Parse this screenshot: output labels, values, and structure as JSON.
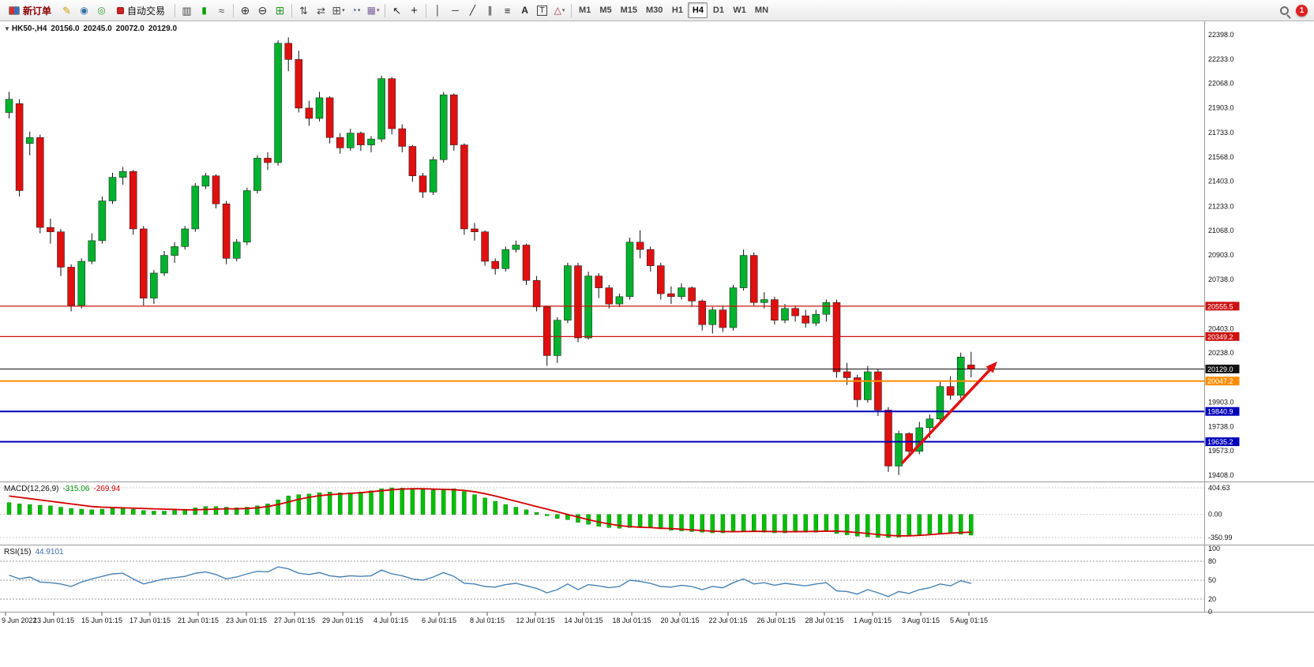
{
  "toolbar": {
    "items": [
      {
        "type": "button",
        "name": "new-order",
        "label": "新订单"
      },
      {
        "type": "icon",
        "name": "crayon"
      },
      {
        "type": "icon",
        "name": "profile"
      },
      {
        "type": "icon",
        "name": "community"
      },
      {
        "type": "button",
        "name": "autotrade",
        "label": "自动交易"
      },
      {
        "type": "sep"
      },
      {
        "type": "icon",
        "name": "bar-chart"
      },
      {
        "type": "icon",
        "name": "candlestick-chart"
      },
      {
        "type": "icon",
        "name": "line-chart"
      },
      {
        "type": "sep"
      },
      {
        "type": "icon",
        "name": "zoom-in"
      },
      {
        "type": "icon",
        "name": "zoom-out"
      },
      {
        "type": "icon",
        "name": "tile-windows"
      },
      {
        "type": "sep"
      },
      {
        "type": "icon",
        "name": "arrange-up"
      },
      {
        "type": "icon",
        "name": "arrange-down"
      },
      {
        "type": "icon",
        "name": "new-chart",
        "caret": true
      },
      {
        "type": "icon",
        "name": "period",
        "caret": true
      },
      {
        "type": "icon",
        "name": "template",
        "caret": true
      },
      {
        "type": "sep"
      },
      {
        "type": "icon",
        "name": "cursor"
      },
      {
        "type": "icon",
        "name": "crosshair"
      },
      {
        "type": "sep"
      },
      {
        "type": "icon",
        "name": "vertical-line"
      },
      {
        "type": "icon",
        "name": "horizontal-line"
      },
      {
        "type": "icon",
        "name": "trendline"
      },
      {
        "type": "icon",
        "name": "channel"
      },
      {
        "type": "icon",
        "name": "fibonacci"
      },
      {
        "type": "icon",
        "name": "text"
      },
      {
        "type": "icon",
        "name": "label"
      },
      {
        "type": "icon",
        "name": "shapes",
        "caret": true
      },
      {
        "type": "sep"
      }
    ],
    "timeframes": [
      "M1",
      "M5",
      "M15",
      "M30",
      "H1",
      "H4",
      "D1",
      "W1",
      "MN"
    ],
    "active_timeframe": "H4",
    "notification_count": "1"
  },
  "chart_header": {
    "collapse_glyph": "▼",
    "symbol": "HK50-,H4",
    "open": "20156.0",
    "high": "20245.0",
    "low": "20072.0",
    "close": "20129.0"
  },
  "price_axis": {
    "labels": [
      "22398.0",
      "22233.0",
      "22068.0",
      "21903.0",
      "21733.0",
      "21568.0",
      "21403.0",
      "21233.0",
      "21068.0",
      "20903.0",
      "20738.0",
      "20403.0",
      "20238.0",
      "19903.0",
      "19738.0",
      "19573.0",
      "19408.0"
    ],
    "badges": [
      {
        "label": "20555.5",
        "color": "#cc1111"
      },
      {
        "label": "20349.2",
        "color": "#cc1111"
      },
      {
        "label": "20129.0",
        "color": "#111111"
      },
      {
        "label": "20047.2",
        "color": "#ff8c00"
      },
      {
        "label": "19840.9",
        "color": "#0000bb"
      },
      {
        "label": "19635.2",
        "color": "#0000bb"
      }
    ]
  },
  "levels": [
    {
      "value": 20555.5,
      "color": "#cc1111",
      "width": 1.2
    },
    {
      "value": 20349.2,
      "color": "#cc1111",
      "width": 1.2
    },
    {
      "value": 20129.0,
      "color": "#111111",
      "width": 1
    },
    {
      "value": 20047.2,
      "color": "#ff8c00",
      "width": 2
    },
    {
      "value": 19840.9,
      "color": "#0000bb",
      "width": 2
    },
    {
      "value": 19635.2,
      "color": "#0000bb",
      "width": 2
    }
  ],
  "macd_panel": {
    "name": "MACD(12,26,9)",
    "main_value": "-315.06",
    "signal_value": "-269.94",
    "axis": [
      "404.63",
      "0.00",
      "-350.99"
    ]
  },
  "rsi_panel": {
    "name": "RSI(15)",
    "value": "44.9101",
    "axis": [
      "100",
      "80",
      "50",
      "20",
      "0"
    ],
    "levels": [
      80,
      50,
      20
    ]
  },
  "time_axis": [
    "9 Jun 2022",
    "13 Jun 01:15",
    "15 Jun 01:15",
    "17 Jun 01:15",
    "21 Jun 01:15",
    "23 Jun 01:15",
    "27 Jun 01:15",
    "29 Jun 01:15",
    "4 Jul 01:15",
    "6 Jul 01:15",
    "8 Jul 01:15",
    "12 Jul 01:15",
    "14 Jul 01:15",
    "18 Jul 01:15",
    "20 Jul 01:15",
    "22 Jul 01:15",
    "26 Jul 01:15",
    "28 Jul 01:15",
    "1 Aug 01:15",
    "3 Aug 01:15",
    "5 Aug 01:15"
  ],
  "colors": {
    "up": "#00b22d",
    "down": "#e01010",
    "macd_hist": "#00c000",
    "macd_signal": "#d40000",
    "rsi_line": "#4682b4",
    "arrow": "#e01010"
  },
  "chart_data": {
    "type": "candlestick",
    "symbol": "HK50-",
    "timeframe": "H4",
    "y_min": 19408.0,
    "y_max": 22398.0,
    "candles": [
      [
        21870,
        22010,
        21830,
        21960
      ],
      [
        21930,
        21960,
        21300,
        21340
      ],
      [
        21660,
        21740,
        21580,
        21700
      ],
      [
        21700,
        21720,
        21050,
        21090
      ],
      [
        21090,
        21150,
        20980,
        21060
      ],
      [
        21060,
        21080,
        20760,
        20820
      ],
      [
        20820,
        20840,
        20520,
        20560
      ],
      [
        20560,
        20880,
        20540,
        20860
      ],
      [
        20860,
        21050,
        20840,
        21000
      ],
      [
        21000,
        21300,
        20980,
        21270
      ],
      [
        21270,
        21460,
        21250,
        21430
      ],
      [
        21430,
        21500,
        21380,
        21470
      ],
      [
        21470,
        21480,
        21040,
        21080
      ],
      [
        21080,
        21100,
        20560,
        20610
      ],
      [
        20610,
        20800,
        20570,
        20780
      ],
      [
        20780,
        20930,
        20760,
        20900
      ],
      [
        20900,
        20990,
        20850,
        20960
      ],
      [
        20960,
        21100,
        20940,
        21080
      ],
      [
        21080,
        21390,
        21060,
        21370
      ],
      [
        21370,
        21460,
        21350,
        21440
      ],
      [
        21440,
        21450,
        21220,
        21250
      ],
      [
        21250,
        21270,
        20840,
        20880
      ],
      [
        20880,
        21010,
        20860,
        20990
      ],
      [
        20990,
        21360,
        20970,
        21340
      ],
      [
        21340,
        21580,
        21320,
        21560
      ],
      [
        21560,
        21600,
        21480,
        21530
      ],
      [
        21530,
        22360,
        21510,
        22340
      ],
      [
        22340,
        22380,
        22150,
        22230
      ],
      [
        22230,
        22290,
        21870,
        21900
      ],
      [
        21900,
        21950,
        21780,
        21830
      ],
      [
        21830,
        22010,
        21810,
        21970
      ],
      [
        21970,
        21980,
        21660,
        21700
      ],
      [
        21700,
        21730,
        21590,
        21630
      ],
      [
        21630,
        21760,
        21610,
        21730
      ],
      [
        21730,
        21740,
        21610,
        21650
      ],
      [
        21650,
        21710,
        21600,
        21690
      ],
      [
        21690,
        22120,
        21670,
        22100
      ],
      [
        22100,
        22110,
        21720,
        21760
      ],
      [
        21760,
        21790,
        21600,
        21640
      ],
      [
        21640,
        21650,
        21400,
        21440
      ],
      [
        21440,
        21460,
        21290,
        21330
      ],
      [
        21330,
        21570,
        21310,
        21550
      ],
      [
        21550,
        22010,
        21530,
        21990
      ],
      [
        21990,
        22000,
        21610,
        21650
      ],
      [
        21650,
        21660,
        21040,
        21080
      ],
      [
        21080,
        21120,
        21000,
        21060
      ],
      [
        21060,
        21070,
        20830,
        20860
      ],
      [
        20860,
        20880,
        20770,
        20810
      ],
      [
        20810,
        20960,
        20790,
        20940
      ],
      [
        20940,
        21000,
        20920,
        20970
      ],
      [
        20970,
        20980,
        20700,
        20730
      ],
      [
        20730,
        20760,
        20520,
        20550
      ],
      [
        20550,
        20560,
        20150,
        20220
      ],
      [
        20220,
        20480,
        20170,
        20460
      ],
      [
        20460,
        20850,
        20440,
        20830
      ],
      [
        20830,
        20850,
        20310,
        20340
      ],
      [
        20340,
        20790,
        20330,
        20760
      ],
      [
        20760,
        20780,
        20610,
        20680
      ],
      [
        20680,
        20700,
        20540,
        20570
      ],
      [
        20570,
        20640,
        20550,
        20620
      ],
      [
        20620,
        21020,
        20600,
        20990
      ],
      [
        20990,
        21070,
        20880,
        20940
      ],
      [
        20940,
        20960,
        20790,
        20830
      ],
      [
        20830,
        20850,
        20600,
        20640
      ],
      [
        20640,
        20690,
        20570,
        20620
      ],
      [
        20620,
        20710,
        20600,
        20680
      ],
      [
        20680,
        20690,
        20550,
        20590
      ],
      [
        20590,
        20600,
        20390,
        20430
      ],
      [
        20430,
        20550,
        20370,
        20530
      ],
      [
        20530,
        20560,
        20380,
        20410
      ],
      [
        20410,
        20700,
        20390,
        20680
      ],
      [
        20680,
        20940,
        20660,
        20900
      ],
      [
        20900,
        20920,
        20560,
        20580
      ],
      [
        20580,
        20650,
        20540,
        20600
      ],
      [
        20600,
        20620,
        20430,
        20460
      ],
      [
        20460,
        20570,
        20440,
        20540
      ],
      [
        20540,
        20560,
        20450,
        20490
      ],
      [
        20490,
        20530,
        20410,
        20440
      ],
      [
        20440,
        20530,
        20420,
        20500
      ],
      [
        20500,
        20600,
        20450,
        20580
      ],
      [
        20580,
        20600,
        20070,
        20110
      ],
      [
        20110,
        20170,
        20020,
        20070
      ],
      [
        20070,
        20090,
        19870,
        19920
      ],
      [
        19920,
        20150,
        19900,
        20110
      ],
      [
        20110,
        20130,
        19810,
        19850
      ],
      [
        19850,
        19870,
        19430,
        19470
      ],
      [
        19470,
        19710,
        19410,
        19690
      ],
      [
        19690,
        19700,
        19530,
        19570
      ],
      [
        19570,
        19770,
        19550,
        19730
      ],
      [
        19730,
        19820,
        19660,
        19790
      ],
      [
        19790,
        20040,
        19770,
        20010
      ],
      [
        20010,
        20080,
        19920,
        19950
      ],
      [
        19950,
        20240,
        19930,
        20210
      ],
      [
        20156,
        20245,
        20072,
        20129
      ]
    ],
    "macd_histogram": [
      180,
      160,
      150,
      140,
      130,
      110,
      90,
      80,
      70,
      80,
      90,
      100,
      80,
      60,
      50,
      50,
      60,
      80,
      100,
      120,
      120,
      110,
      100,
      110,
      130,
      160,
      220,
      280,
      300,
      310,
      330,
      340,
      330,
      330,
      340,
      360,
      390,
      404,
      400,
      390,
      380,
      370,
      380,
      390,
      350,
      300,
      250,
      200,
      150,
      110,
      70,
      30,
      -20,
      -60,
      -80,
      -120,
      -150,
      -180,
      -200,
      -210,
      -200,
      -190,
      -200,
      -220,
      -240,
      -250,
      -260,
      -270,
      -280,
      -280,
      -270,
      -250,
      -260,
      -270,
      -280,
      -280,
      -270,
      -270,
      -270,
      -260,
      -290,
      -310,
      -330,
      -340,
      -350,
      -351,
      -345,
      -330,
      -320,
      -310,
      -300,
      -290,
      -300,
      -315
    ],
    "macd_signal": [
      280,
      260,
      240,
      220,
      200,
      180,
      160,
      140,
      120,
      110,
      105,
      100,
      95,
      90,
      85,
      80,
      75,
      70,
      70,
      75,
      80,
      85,
      85,
      90,
      100,
      120,
      150,
      190,
      230,
      260,
      285,
      300,
      310,
      320,
      330,
      345,
      360,
      375,
      385,
      390,
      390,
      385,
      380,
      375,
      365,
      345,
      315,
      280,
      240,
      200,
      160,
      120,
      80,
      40,
      0,
      -40,
      -80,
      -115,
      -145,
      -170,
      -185,
      -195,
      -200,
      -210,
      -215,
      -225,
      -235,
      -245,
      -255,
      -260,
      -262,
      -260,
      -258,
      -258,
      -260,
      -262,
      -262,
      -260,
      -258,
      -255,
      -255,
      -262,
      -275,
      -290,
      -305,
      -318,
      -325,
      -325,
      -318,
      -308,
      -295,
      -285,
      -275,
      -270
    ],
    "rsi": [
      58,
      52,
      55,
      47,
      46,
      44,
      40,
      47,
      52,
      56,
      60,
      61,
      52,
      44,
      48,
      52,
      54,
      56,
      61,
      63,
      59,
      52,
      55,
      60,
      64,
      63,
      71,
      68,
      61,
      59,
      62,
      57,
      55,
      57,
      56,
      57,
      66,
      60,
      57,
      52,
      50,
      55,
      62,
      56,
      45,
      44,
      40,
      39,
      43,
      45,
      41,
      37,
      30,
      35,
      44,
      35,
      43,
      41,
      38,
      40,
      50,
      48,
      45,
      40,
      39,
      42,
      40,
      35,
      40,
      38,
      46,
      52,
      44,
      46,
      42,
      45,
      43,
      41,
      44,
      46,
      33,
      32,
      28,
      35,
      30,
      24,
      32,
      29,
      35,
      38,
      44,
      41,
      49,
      44.9
    ]
  }
}
